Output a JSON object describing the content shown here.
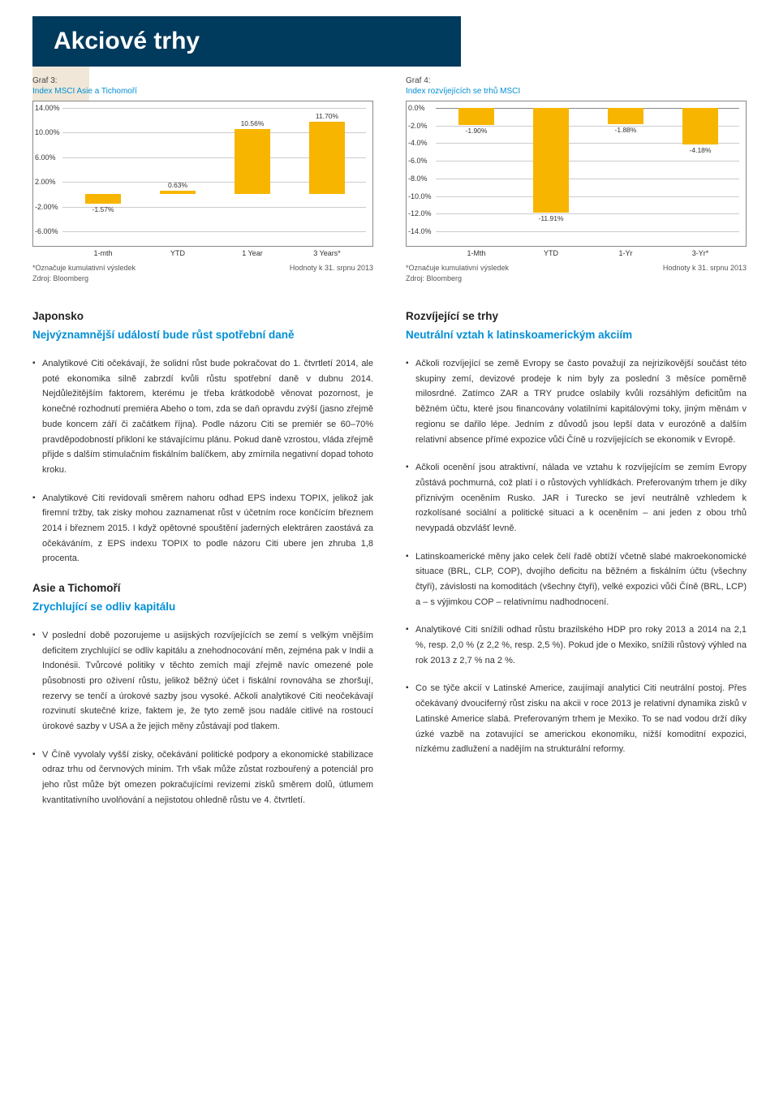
{
  "header": {
    "title": "Akciové trhy"
  },
  "chart3": {
    "label": "Graf 3:",
    "title": "Index MSCI Asie a Tichomoří",
    "type": "bar",
    "ymin": -6.0,
    "ymax": 14.0,
    "ystep": 4.0,
    "yticks": [
      "-6.00%",
      "-2.00%",
      "2.00%",
      "6.00%",
      "10.00%",
      "14.00%"
    ],
    "categories": [
      "1-mth",
      "YTD",
      "1 Year",
      "3 Years*"
    ],
    "values": [
      -1.57,
      0.63,
      10.56,
      11.7
    ],
    "value_labels": [
      "-1.57%",
      "0.63%",
      "10.56%",
      "11.70%"
    ],
    "bar_color": "#f7b500",
    "footnote1": "*Označuje kumulativní výsledek",
    "footnote2": "Zdroj: Bloomberg",
    "footnote_right": "Hodnoty k 31. srpnu 2013"
  },
  "chart4": {
    "label": "Graf 4:",
    "title": "Index rozvíjejících se trhů MSCI",
    "type": "bar",
    "ymin": -14.0,
    "ymax": 0.0,
    "ystep": 2.0,
    "yticks": [
      "-14.0%",
      "-12.0%",
      "-10.0%",
      "-8.0%",
      "-6.0%",
      "-4.0%",
      "-2.0%",
      "0.0%"
    ],
    "categories": [
      "1-Mth",
      "YTD",
      "1-Yr",
      "3-Yr*"
    ],
    "values": [
      -1.9,
      -11.91,
      -1.88,
      -4.18
    ],
    "value_labels": [
      "-1.90%",
      "-11.91%",
      "-1.88%",
      "-4.18%"
    ],
    "bar_color": "#f7b500",
    "footnote1": "*Označuje kumulativní výsledek",
    "footnote2": "Zdroj: Bloomberg",
    "footnote_right": "Hodnoty k 31. srpnu 2013"
  },
  "left": {
    "s1_title": "Japonsko",
    "s1_sub": "Nejvýznamnější událostí bude růst spotřební daně",
    "s1_p1": "Analytikové Citi očekávají, že solidní růst bude pokračovat do 1. čtvrtletí 2014, ale poté ekonomika silně zabrzdí kvůli růstu spotřební daně v dubnu 2014. Nejdůležitějším faktorem, kterému je třeba krátkodobě věnovat pozornost, je konečné rozhodnutí premiéra Abeho o tom, zda se daň opravdu zvýší (jasno zřejmě bude koncem září či začátkem října). Podle názoru Citi se premiér se 60–70% pravděpodobností přikloní ke stávajícímu plánu. Pokud daně vzrostou, vláda zřejmě přijde s dalším stimulačním fiskálním balíčkem, aby zmírnila negativní dopad tohoto kroku.",
    "s1_p2": "Analytikové Citi revidovali směrem nahoru odhad EPS indexu TOPIX, jelikož jak firemní tržby, tak zisky mohou zaznamenat růst v účetním roce končícím březnem 2014 i březnem 2015. I když opětovné spouštění jaderných elektráren zaostává za očekáváním, z EPS indexu TOPIX to podle názoru Citi ubere jen zhruba 1,8 procenta.",
    "s2_title": "Asie a Tichomoří",
    "s2_sub": "Zrychlující se odliv kapitálu",
    "s2_p1": "V poslední době pozorujeme u asijských rozvíjejících se zemí s velkým vnějším deficitem zrychlující se odliv kapitálu a znehodnocování měn, zejména pak v Indii a Indonésii. Tvůrcové politiky v těchto zemích mají zřejmě navíc omezené pole působnosti pro oživení růstu, jelikož běžný účet i fiskální rovnováha se zhoršují, rezervy se tenčí a úrokové sazby jsou vysoké. Ačkoli analytikové Citi neočekávají rozvinutí skutečné krize, faktem je, že tyto země jsou nadále citlivé na rostoucí úrokové sazby v USA a že jejich měny zůstávají pod tlakem.",
    "s2_p2": "V Číně vyvolaly vyšší zisky, očekávání politické podpory a ekonomické stabilizace odraz trhu od červnových minim. Trh však může zůstat rozbouřený a potenciál pro jeho růst může být omezen pokračujícími revizemi zisků směrem dolů, útlumem kvantitativního uvolňování a nejistotou ohledně růstu ve 4. čtvrtletí."
  },
  "right": {
    "s1_title": "Rozvíjející se trhy",
    "s1_sub": "Neutrální vztah k latinskoamerickým akciím",
    "p1": "Ačkoli rozvíjející se země Evropy se často považují za nejrizikovější součást této skupiny zemí, devizové prodeje k nim byly za poslední 3 měsíce poměrně milosrdné. Zatímco ZAR a TRY prudce oslabily kvůli rozsáhlým deficitům na běžném účtu, které jsou financovány volatilními kapitálovými toky, jiným měnám v regionu se dařilo lépe. Jedním z důvodů jsou lepší data v eurozóně a dalším relativní absence přímé expozice vůči Číně u rozvíjejících se ekonomik v Evropě.",
    "p2": "Ačkoli ocenění jsou atraktivní, nálada ve vztahu k rozvíjejícím se zemím Evropy zůstává pochmurná, což platí i o růstových vyhlídkách. Preferovaným trhem je díky příznivým oceněním Rusko. JAR i Turecko se jeví neutrálně vzhledem k rozkolísané sociální a politické situaci a k oceněním – ani jeden z obou trhů nevypadá obzvlášť levně.",
    "p3": "Latinskoamerické měny jako celek čelí řadě obtíží včetně slabé makroekonomické situace (BRL, CLP, COP), dvojího deficitu na běžném a fiskálním účtu (všechny čtyři), závislosti na komoditách (všechny čtyři), velké expozici vůči Číně (BRL, LCP) a – s výjimkou COP – relativnímu nadhodnocení.",
    "p4": "Analytikové Citi snížili odhad růstu brazilského HDP pro roky 2013 a 2014 na 2,1 %, resp. 2,0 % (z 2,2 %, resp. 2,5 %). Pokud jde o Mexiko, snížili růstový výhled na rok 2013 z 2,7 % na 2 %.",
    "p5": "Co se týče akcií v Latinské Americe, zaujímají analytici Citi neutrální postoj. Přes očekávaný dvouciferný růst zisku na akcii v roce 2013 je relativní dynamika zisků v Latinské Americe slabá. Preferovaným trhem je Mexiko. To se nad vodou drží díky úzké vazbě na zotavující se americkou ekonomiku, nižší komoditní expozici, nízkému zadlužení a nadějím na strukturální reformy."
  }
}
